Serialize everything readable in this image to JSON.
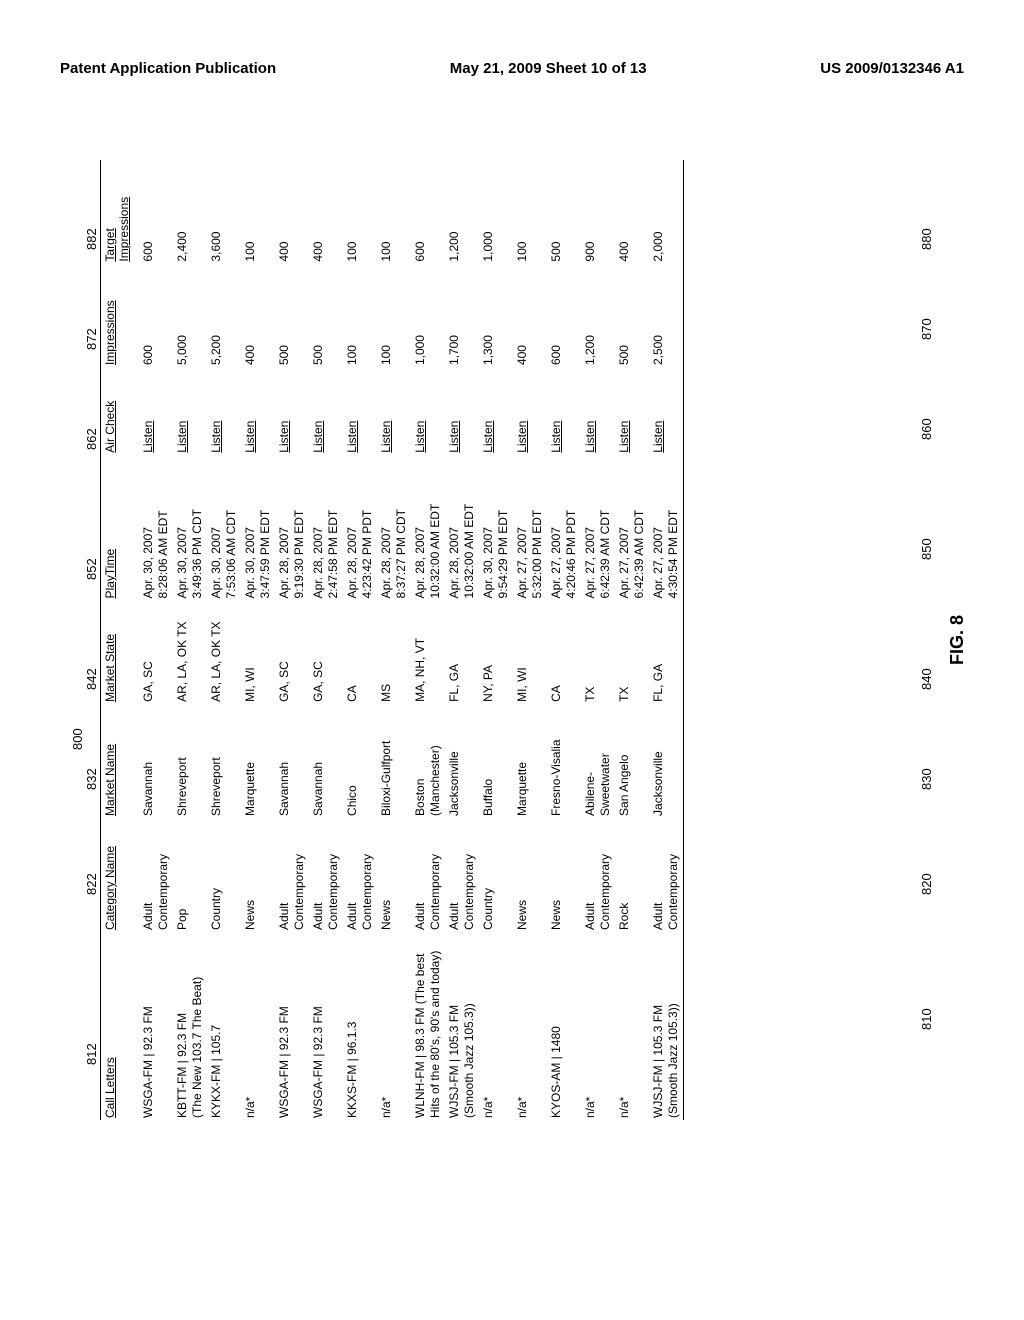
{
  "header": {
    "left": "Patent Application Publication",
    "center": "May 21, 2009  Sheet 10 of 13",
    "right": "US 2009/0132346 A1"
  },
  "figure": {
    "caption": "FIG. 8",
    "main_ref": "800",
    "columns": [
      {
        "label": "Call Letters",
        "ref": "812",
        "col_ref": "810"
      },
      {
        "label": "Category Name",
        "ref": "822",
        "col_ref": "820"
      },
      {
        "label": "Market Name",
        "ref": "832",
        "col_ref": "830"
      },
      {
        "label": "Market State",
        "ref": "842",
        "col_ref": "840"
      },
      {
        "label": "PlayTime",
        "ref": "852",
        "col_ref": "850"
      },
      {
        "label": "Air Check",
        "ref": "862",
        "col_ref": "860"
      },
      {
        "label": "Impressions",
        "ref": "872",
        "col_ref": "870"
      },
      {
        "label": "Target Impressions",
        "ref": "882",
        "col_ref": "880"
      }
    ],
    "rows": [
      {
        "call": "WSGA-FM | 92.3 FM",
        "cat": "Adult Contemporary",
        "mkt": "Savannah",
        "state": "GA, SC",
        "play": "Apr. 30, 2007\n8:28:06 AM EDT",
        "air": "Listen",
        "imp": "600",
        "timp": "600"
      },
      {
        "call": "KBTT-FM | 92.3 FM\n(The New 103.7 The Beat)",
        "cat": "Pop",
        "mkt": "Shreveport",
        "state": "AR, LA, OK TX",
        "play": "Apr. 30, 2007\n3:49:36 PM CDT",
        "air": "Listen",
        "imp": "5,000",
        "timp": "2,400"
      },
      {
        "call": "KYKX-FM | 105.7",
        "cat": "Country",
        "mkt": "Shreveport",
        "state": "AR, LA, OK TX",
        "play": "Apr. 30, 2007\n7:53:06 AM CDT",
        "air": "Listen",
        "imp": "5,200",
        "timp": "3,600"
      },
      {
        "call": "n/a*",
        "cat": "News",
        "mkt": "Marquette",
        "state": "MI, WI",
        "play": "Apr. 30, 2007\n3:47:59 PM EDT",
        "air": "Listen",
        "imp": "400",
        "timp": "100"
      },
      {
        "call": "WSGA-FM | 92.3 FM",
        "cat": "Adult Contemporary",
        "mkt": "Savannah",
        "state": "GA, SC",
        "play": "Apr. 28, 2007\n9:19:30 PM EDT",
        "air": "Listen",
        "imp": "500",
        "timp": "400"
      },
      {
        "call": "WSGA-FM | 92.3 FM",
        "cat": "Adult Contemporary",
        "mkt": "Savannah",
        "state": "GA, SC",
        "play": "Apr. 28, 2007\n2:47:58 PM EDT",
        "air": "Listen",
        "imp": "500",
        "timp": "400"
      },
      {
        "call": "KKXS-FM | 96.1.3",
        "cat": "Adult Contemporary",
        "mkt": "Chico",
        "state": "CA",
        "play": "Apr. 28, 2007\n4:23:42 PM PDT",
        "air": "Listen",
        "imp": "100",
        "timp": "100"
      },
      {
        "call": "n/a*",
        "cat": "News",
        "mkt": "Biloxi-Gulfport",
        "state": "MS",
        "play": "Apr. 28, 2007\n8:37:27 PM CDT",
        "air": "Listen",
        "imp": "100",
        "timp": "100"
      },
      {
        "call": "WLNH-FM | 98.3 FM (The best\nHits of the 80's, 90's and today)",
        "cat": "Adult Contemporary",
        "mkt": "Boston (Manchester)",
        "state": "MA, NH, VT",
        "play": "Apr. 28, 2007\n10:32:00 AM EDT",
        "air": "Listen",
        "imp": "1,000",
        "timp": "600"
      },
      {
        "call": "WJSJ-FM | 105.3 FM\n(Smooth Jazz 105.3))",
        "cat": "Adult Contemporary",
        "mkt": "Jacksonville",
        "state": "FL, GA",
        "play": "Apr. 28, 2007\n10:32:00 AM EDT",
        "air": "Listen",
        "imp": "1,700",
        "timp": "1,200"
      },
      {
        "call": "n/a*",
        "cat": "Country",
        "mkt": "Buffalo",
        "state": "NY, PA",
        "play": "Apr. 30, 2007\n9:54:29 PM EDT",
        "air": "Listen",
        "imp": "1,300",
        "timp": "1,000"
      },
      {
        "call": "n/a*",
        "cat": "News",
        "mkt": "Marquette",
        "state": "MI, WI",
        "play": "Apr. 27, 2007\n5:32:00 PM EDT",
        "air": "Listen",
        "imp": "400",
        "timp": "100"
      },
      {
        "call": "KYOS-AM | 1480",
        "cat": "News",
        "mkt": "Fresno-Visalia",
        "state": "CA",
        "play": "Apr. 27, 2007\n4:20:46 PM PDT",
        "air": "Listen",
        "imp": "600",
        "timp": "500"
      },
      {
        "call": "n/a*",
        "cat": "Adult Contemporary",
        "mkt": "Abilene-Sweetwater",
        "state": "TX",
        "play": "Apr. 27, 2007\n6:42:39 AM CDT",
        "air": "Listen",
        "imp": "1,200",
        "timp": "900"
      },
      {
        "call": "n/a*",
        "cat": "Rock",
        "mkt": "San Angelo",
        "state": "TX",
        "play": "Apr. 27, 2007\n6:42:39 AM CDT",
        "air": "Listen",
        "imp": "500",
        "timp": "400"
      },
      {
        "call": "WJSJ-FM | 105.3 FM\n(Smooth Jazz 105.3))",
        "cat": "Adult Contemporary",
        "mkt": "Jacksonville",
        "state": "FL, GA",
        "play": "Apr. 27, 2007\n4:30:54 PM EDT",
        "air": "Listen",
        "imp": "2,500",
        "timp": "2,000"
      }
    ]
  }
}
